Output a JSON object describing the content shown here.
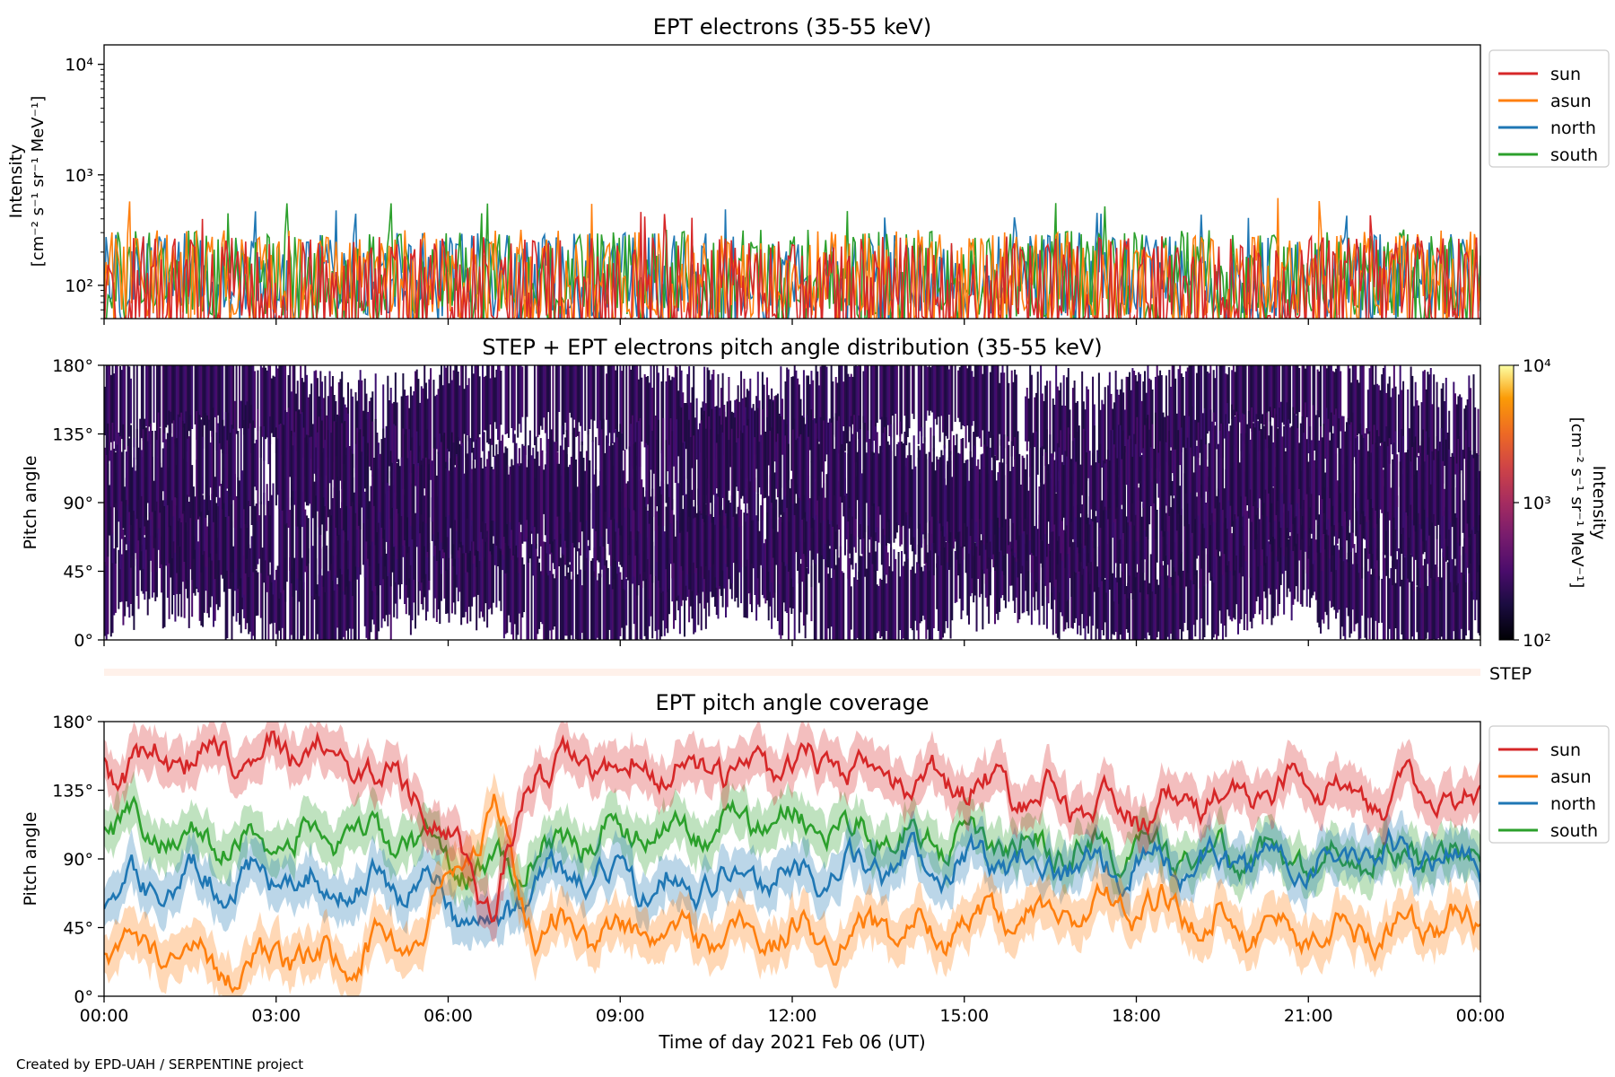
{
  "footer": "Created by EPD-UAH / SERPENTINE project",
  "xaxis": {
    "label": "Time of day 2021 Feb 06 (UT)",
    "ticks": [
      "00:00",
      "03:00",
      "06:00",
      "09:00",
      "12:00",
      "15:00",
      "18:00",
      "21:00",
      "00:00"
    ],
    "range_hours": [
      0,
      24
    ]
  },
  "colors": {
    "sun": "#d62728",
    "asun": "#ff7f0e",
    "north": "#1f77b4",
    "south": "#2ca02c"
  },
  "chart_data": [
    {
      "type": "line",
      "title": "EPT electrons (35-55 keV)",
      "ylabel": "Intensity",
      "yunits": "[cm⁻² s⁻¹ sr⁻¹ MeV⁻¹]",
      "yscale": "log",
      "ylim": [
        50,
        15000
      ],
      "yticks": [
        "10⁴",
        "10³",
        "10²"
      ],
      "ytick_values": [
        10000,
        1000,
        100
      ],
      "legend_position": "outside-right-top",
      "series": [
        {
          "name": "sun",
          "color": "#d62728",
          "typical_range": [
            50,
            280
          ],
          "peak": 470
        },
        {
          "name": "asun",
          "color": "#ff7f0e",
          "typical_range": [
            60,
            320
          ],
          "peak": 680
        },
        {
          "name": "north",
          "color": "#1f77b4",
          "typical_range": [
            70,
            300
          ],
          "peak": 500
        },
        {
          "name": "south",
          "color": "#2ca02c",
          "typical_range": [
            70,
            320
          ],
          "peak": 560
        }
      ]
    },
    {
      "type": "heatmap",
      "title": "STEP + EPT electrons pitch angle distribution (35-55 keV)",
      "ylabel": "Pitch angle",
      "yticks": [
        "0°",
        "45°",
        "90°",
        "135°",
        "180°"
      ],
      "ylim": [
        0,
        180
      ],
      "colorbar": {
        "label": "Intensity",
        "units": "[cm⁻² s⁻¹ sr⁻¹ MeV⁻¹]",
        "scale": "log",
        "range": [
          100,
          10000
        ],
        "ticks": [
          "10²",
          "10³",
          "10⁴"
        ],
        "colormap": "inferno"
      },
      "typical_intensity": [
        100,
        300
      ]
    },
    {
      "type": "heatmap",
      "label": "STEP",
      "note": "strip with no data"
    },
    {
      "type": "line",
      "title": "EPT pitch angle coverage",
      "ylabel": "Pitch angle",
      "yticks": [
        "0°",
        "45°",
        "90°",
        "135°",
        "180°"
      ],
      "ylim": [
        0,
        180
      ],
      "legend_position": "outside-right-top",
      "series": [
        {
          "name": "sun",
          "color": "#d62728",
          "x_hours": [
            0,
            2,
            4,
            5.5,
            6.8,
            7.5,
            9,
            12,
            15,
            18,
            21,
            24
          ],
          "values": [
            150,
            162,
            160,
            135,
            55,
            150,
            150,
            150,
            140,
            120,
            140,
            125
          ]
        },
        {
          "name": "asun",
          "color": "#ff7f0e",
          "x_hours": [
            0,
            2,
            4,
            5.5,
            6.8,
            7.5,
            9,
            12,
            15,
            18,
            21,
            24
          ],
          "values": [
            35,
            20,
            25,
            40,
            125,
            45,
            40,
            40,
            45,
            60,
            40,
            50
          ]
        },
        {
          "name": "north",
          "color": "#1f77b4",
          "x_hours": [
            0,
            2,
            4,
            5.5,
            6.8,
            7.5,
            9,
            12,
            15,
            18,
            21,
            24
          ],
          "values": [
            70,
            78,
            72,
            75,
            40,
            80,
            75,
            80,
            90,
            85,
            90,
            90
          ]
        },
        {
          "name": "south",
          "color": "#2ca02c",
          "x_hours": [
            0,
            2,
            4,
            5.5,
            6.8,
            7.5,
            9,
            12,
            15,
            18,
            21,
            24
          ],
          "values": [
            115,
            100,
            105,
            100,
            80,
            95,
            110,
            115,
            100,
            95,
            90,
            95
          ]
        }
      ]
    }
  ]
}
